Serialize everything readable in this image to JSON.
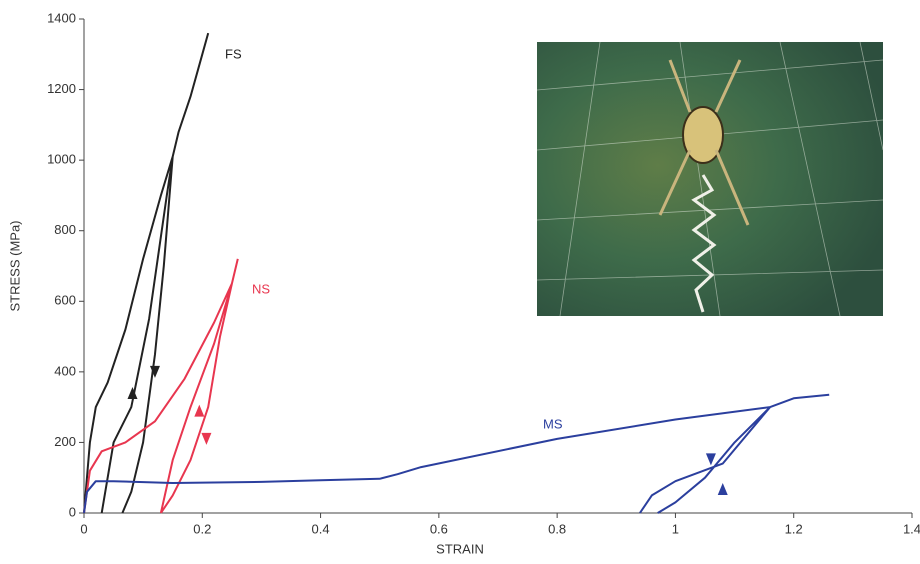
{
  "chart_data": {
    "type": "line",
    "x_label": "STRAIN",
    "y_label": "STRESS (MPa)",
    "xlim": [
      0,
      1.4
    ],
    "ylim": [
      0,
      1400
    ],
    "xticks": [
      0,
      0.2,
      0.4,
      0.6,
      0.8,
      1,
      1.2,
      1.4
    ],
    "yticks": [
      0,
      200,
      400,
      600,
      800,
      1000,
      1200,
      1400
    ],
    "series": [
      {
        "name": "FS",
        "color": "#222222",
        "x": [
          0,
          0.01,
          0.02,
          0.04,
          0.07,
          0.1,
          0.13,
          0.15,
          0.135,
          0.12,
          0.1,
          0.08,
          0.065,
          null,
          0.03,
          0.05,
          0.08,
          0.11,
          0.14,
          0.15,
          0.16,
          0.18,
          0.2,
          0.21
        ],
        "values": [
          0,
          200,
          300,
          370,
          520,
          720,
          900,
          1010,
          700,
          450,
          200,
          60,
          0,
          null,
          0,
          200,
          300,
          550,
          900,
          1010,
          1080,
          1180,
          1300,
          1360
        ]
      },
      {
        "name": "NS",
        "color": "#e8364f",
        "x": [
          0,
          0.01,
          0.03,
          0.07,
          0.12,
          0.17,
          0.22,
          0.25,
          0.23,
          0.21,
          0.18,
          0.15,
          0.13,
          null,
          0.13,
          0.15,
          0.18,
          0.22,
          0.25,
          0.26
        ],
        "values": [
          0,
          120,
          175,
          200,
          260,
          380,
          540,
          650,
          500,
          300,
          150,
          50,
          0,
          null,
          0,
          150,
          300,
          480,
          650,
          720
        ]
      },
      {
        "name": "MS",
        "color": "#2b3f9e",
        "x": [
          0,
          0.005,
          0.02,
          0.05,
          0.15,
          0.3,
          0.4,
          0.5,
          0.53,
          0.57,
          0.8,
          1.0,
          1.16,
          1.1,
          1.05,
          1.0,
          0.97,
          null,
          0.94,
          0.96,
          1.0,
          1.08,
          1.16,
          1.2,
          1.26
        ],
        "values": [
          0,
          60,
          90,
          90,
          85,
          88,
          93,
          97,
          110,
          130,
          210,
          265,
          300,
          200,
          100,
          30,
          0,
          null,
          0,
          50,
          90,
          140,
          300,
          325,
          335
        ]
      }
    ]
  }
}
